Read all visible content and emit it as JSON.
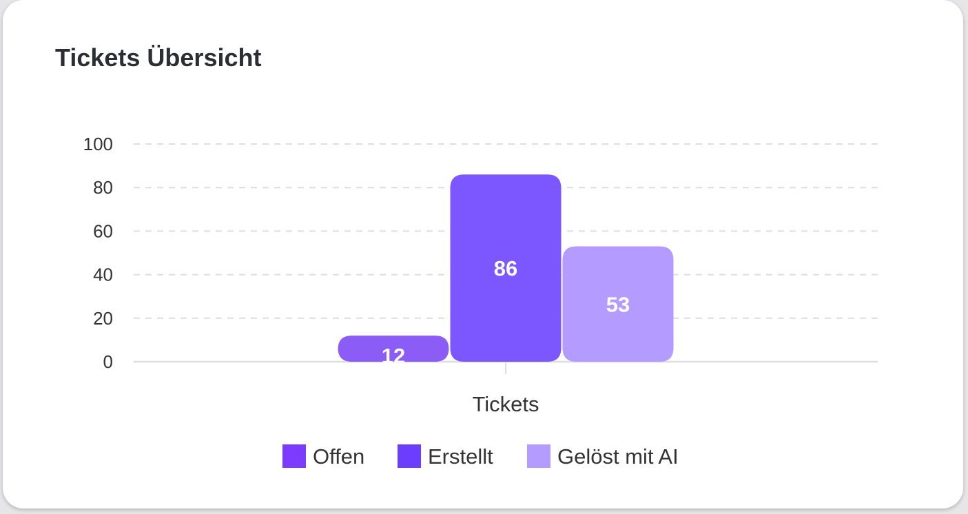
{
  "card": {
    "title": "Tickets Übersicht"
  },
  "chart_data": {
    "type": "bar",
    "title": "Tickets Übersicht",
    "categories": [
      "Tickets"
    ],
    "series": [
      {
        "name": "Offen",
        "values": [
          12
        ],
        "color": "#8b5cf6"
      },
      {
        "name": "Erstellt",
        "values": [
          86
        ],
        "color": "#7c56ff"
      },
      {
        "name": "Gelöst mit AI",
        "values": [
          53
        ],
        "color": "#b49bff"
      }
    ],
    "legend_colors": [
      "#7c3cff",
      "#6a3dff",
      "#b49bff"
    ],
    "ylim": [
      0,
      100
    ],
    "yticks": [
      "0",
      "20",
      "40",
      "60",
      "80",
      "100"
    ],
    "grid": true,
    "grid_style": "dashed",
    "legend_position": "bottom",
    "data_labels": true
  }
}
